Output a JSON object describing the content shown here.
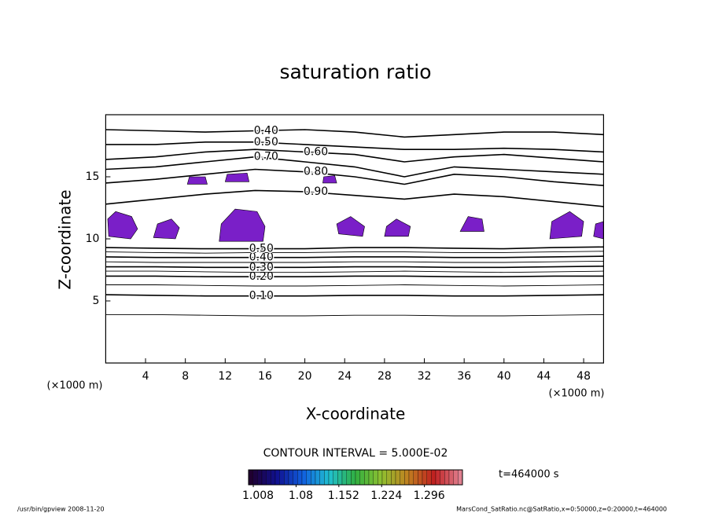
{
  "chart_data": {
    "type": "contour",
    "title": "saturation ratio",
    "x_label": "X-coordinate",
    "y_label": "Z-coordinate",
    "x_unit": "(×1000 m)",
    "xlim": [
      0,
      50
    ],
    "ylim": [
      0,
      20
    ],
    "xticks": [
      4,
      8,
      12,
      16,
      20,
      24,
      28,
      32,
      36,
      40,
      44,
      48
    ],
    "yticks": [
      5,
      10,
      15
    ],
    "contour_interval": "CONTOUR INTERVAL = 5.000E-02",
    "time": "t=464000 s",
    "footer_left": "/usr/bin/gpview  2008-11-20",
    "footer_right": "MarsCond_SatRatio.nc@SatRatio,x=0:50000,z=0:20000,t=464000",
    "line_color": "#000000",
    "contours": [
      {
        "level": 0.05,
        "x": [
          0,
          5,
          10,
          15,
          20,
          25,
          30,
          35,
          40,
          45,
          50
        ],
        "y": [
          3.9,
          3.9,
          3.85,
          3.8,
          3.8,
          3.85,
          3.85,
          3.8,
          3.8,
          3.85,
          3.9
        ]
      },
      {
        "level": {
          "value": 0.1,
          "label": "0.10"
        },
        "x": [
          0,
          5,
          10,
          15,
          20,
          25,
          30,
          35,
          40,
          45,
          50
        ],
        "y": [
          5.5,
          5.45,
          5.4,
          5.4,
          5.4,
          5.45,
          5.45,
          5.4,
          5.4,
          5.45,
          5.5
        ]
      },
      {
        "level": 0.15,
        "x": [
          0,
          5,
          10,
          15,
          20,
          25,
          30,
          35,
          40,
          45,
          50
        ],
        "y": [
          6.3,
          6.3,
          6.25,
          6.2,
          6.2,
          6.25,
          6.3,
          6.25,
          6.2,
          6.25,
          6.3
        ]
      },
      {
        "level": {
          "value": 0.2,
          "label": "0.20"
        },
        "x": [
          0,
          5,
          10,
          15,
          20,
          25,
          30,
          35,
          40,
          45,
          50
        ],
        "y": [
          7.0,
          7.0,
          6.95,
          6.95,
          6.95,
          7.0,
          7.0,
          6.95,
          6.95,
          7.0,
          7.0
        ]
      },
      {
        "level": 0.25,
        "x": [
          0,
          5,
          10,
          15,
          20,
          25,
          30,
          35,
          40,
          45,
          50
        ],
        "y": [
          7.4,
          7.4,
          7.35,
          7.3,
          7.3,
          7.35,
          7.4,
          7.35,
          7.3,
          7.35,
          7.4
        ]
      },
      {
        "level": {
          "value": 0.3,
          "label": "0.30"
        },
        "x": [
          0,
          5,
          10,
          15,
          20,
          25,
          30,
          35,
          40,
          45,
          50
        ],
        "y": [
          7.75,
          7.75,
          7.7,
          7.7,
          7.7,
          7.75,
          7.75,
          7.7,
          7.7,
          7.75,
          7.8
        ]
      },
      {
        "level": 0.35,
        "x": [
          0,
          5,
          10,
          15,
          20,
          25,
          30,
          35,
          40,
          45,
          50
        ],
        "y": [
          8.15,
          8.1,
          8.1,
          8.1,
          8.1,
          8.15,
          8.15,
          8.1,
          8.1,
          8.15,
          8.2
        ]
      },
      {
        "level": {
          "value": 0.4,
          "label": "0.40"
        },
        "x": [
          0,
          5,
          10,
          15,
          20,
          25,
          30,
          35,
          40,
          45,
          50
        ],
        "y": [
          8.55,
          8.5,
          8.5,
          8.5,
          8.5,
          8.55,
          8.55,
          8.5,
          8.5,
          8.55,
          8.6
        ]
      },
      {
        "level": 0.45,
        "x": [
          0,
          5,
          10,
          15,
          20,
          25,
          30,
          35,
          40,
          45,
          50
        ],
        "y": [
          8.95,
          8.9,
          8.85,
          8.9,
          8.9,
          8.95,
          8.95,
          8.9,
          8.9,
          8.95,
          9.0
        ]
      },
      {
        "level": {
          "value": 0.5,
          "label": "0.50"
        },
        "x": [
          0,
          5,
          10,
          15,
          20,
          25,
          30,
          35,
          40,
          45,
          50
        ],
        "y": [
          9.3,
          9.25,
          9.2,
          9.2,
          9.2,
          9.3,
          9.3,
          9.25,
          9.2,
          9.3,
          9.35
        ]
      },
      {
        "level": {
          "value": 0.9,
          "label": "0.90"
        },
        "x": [
          0,
          5,
          10,
          15,
          20,
          25,
          30,
          35,
          40,
          45,
          50
        ],
        "y": [
          12.8,
          13.2,
          13.6,
          13.9,
          13.8,
          13.5,
          13.2,
          13.6,
          13.4,
          13.0,
          12.6
        ]
      },
      {
        "level": {
          "value": 0.8,
          "label": "0.80"
        },
        "x": [
          0,
          5,
          10,
          15,
          20,
          25,
          30,
          35,
          40,
          45,
          50
        ],
        "y": [
          14.5,
          14.8,
          15.2,
          15.6,
          15.4,
          15.0,
          14.4,
          15.2,
          15.0,
          14.6,
          14.3
        ]
      },
      {
        "level": {
          "value": 0.7,
          "label": "0.70"
        },
        "x": [
          0,
          5,
          10,
          15,
          20,
          25,
          30,
          35,
          40,
          45,
          50
        ],
        "y": [
          15.6,
          15.8,
          16.2,
          16.6,
          16.2,
          15.8,
          15.0,
          15.8,
          15.6,
          15.4,
          15.2
        ]
      },
      {
        "level": {
          "value": 0.6,
          "label": "0.60"
        },
        "x": [
          0,
          5,
          10,
          15,
          20,
          25,
          30,
          35,
          40,
          45,
          50
        ],
        "y": [
          16.4,
          16.6,
          17.0,
          17.2,
          17.0,
          16.8,
          16.2,
          16.6,
          16.8,
          16.5,
          16.2
        ]
      },
      {
        "level": {
          "value": 0.5,
          "label": "0.50"
        },
        "x": [
          0,
          5,
          10,
          15,
          20,
          25,
          30,
          35,
          40,
          45,
          50
        ],
        "y": [
          17.6,
          17.6,
          17.8,
          17.8,
          17.6,
          17.4,
          17.2,
          17.2,
          17.3,
          17.2,
          17.0
        ]
      },
      {
        "level": {
          "value": 0.4,
          "label": "0.40"
        },
        "x": [
          0,
          5,
          10,
          15,
          20,
          25,
          30,
          35,
          40,
          45,
          50
        ],
        "y": [
          18.8,
          18.7,
          18.6,
          18.7,
          18.8,
          18.6,
          18.2,
          18.4,
          18.6,
          18.6,
          18.4
        ]
      }
    ],
    "shaded": {
      "color": "#7a1fc8",
      "regions": [
        {
          "x": [
            0.3,
            2.5,
            3.2,
            2.6,
            1.0,
            0.2
          ],
          "y": [
            10.2,
            10.0,
            10.8,
            11.8,
            12.2,
            11.6
          ]
        },
        {
          "x": [
            4.8,
            7.0,
            7.4,
            6.6,
            5.2
          ],
          "y": [
            10.1,
            10.0,
            10.9,
            11.6,
            11.2
          ]
        },
        {
          "x": [
            11.4,
            15.8,
            16.0,
            15.2,
            13.0,
            11.6
          ],
          "y": [
            9.8,
            9.8,
            11.0,
            12.2,
            12.4,
            11.2
          ]
        },
        {
          "x": [
            23.4,
            25.8,
            26.0,
            24.6,
            23.2
          ],
          "y": [
            10.4,
            10.2,
            11.0,
            11.8,
            11.2
          ]
        },
        {
          "x": [
            28.0,
            30.4,
            30.6,
            29.2,
            28.2
          ],
          "y": [
            10.2,
            10.2,
            11.0,
            11.6,
            11.0
          ]
        },
        {
          "x": [
            35.6,
            38.0,
            37.8,
            36.4
          ],
          "y": [
            10.6,
            10.6,
            11.6,
            11.8
          ]
        },
        {
          "x": [
            44.6,
            47.8,
            48.0,
            46.6,
            44.8
          ],
          "y": [
            10.0,
            10.2,
            11.4,
            12.2,
            11.4
          ]
        },
        {
          "x": [
            49.0,
            50.0,
            50.0,
            49.2
          ],
          "y": [
            10.2,
            10.0,
            11.4,
            11.2
          ]
        },
        {
          "x": [
            8.2,
            10.2,
            10.0,
            8.4
          ],
          "y": [
            14.4,
            14.4,
            15.0,
            15.0
          ]
        },
        {
          "x": [
            12.0,
            14.4,
            14.2,
            12.2
          ],
          "y": [
            14.6,
            14.6,
            15.3,
            15.2
          ]
        },
        {
          "x": [
            21.8,
            23.2,
            23.0,
            21.9
          ],
          "y": [
            14.5,
            14.5,
            15.1,
            15.0
          ]
        }
      ]
    },
    "colorbar": {
      "lim": [
        1.0,
        1.36
      ],
      "ticks": [
        1.008,
        1.08,
        1.152,
        1.224,
        1.296
      ],
      "colors": [
        "#200030",
        "#101090",
        "#1060e0",
        "#20c0d0",
        "#30b040",
        "#90c030",
        "#c08020",
        "#c02020",
        "#e08090"
      ]
    }
  }
}
